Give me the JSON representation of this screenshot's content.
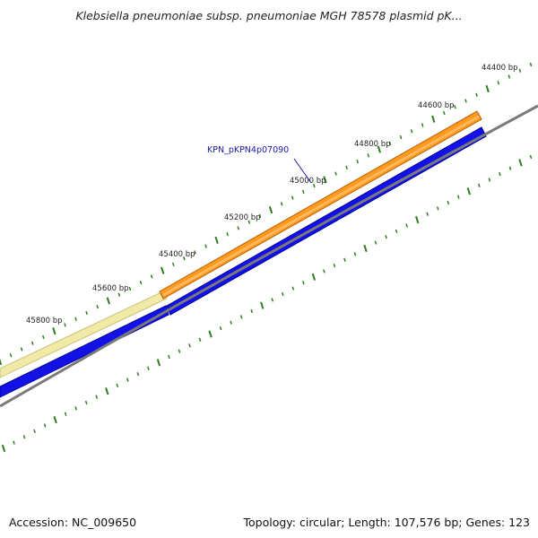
{
  "header": {
    "title": "Klebsiella pneumoniae subsp. pneumoniae MGH 78578 plasmid pK..."
  },
  "footer": {
    "accession": "Accession: NC_009650",
    "topology": "Topology: circular; Length: 107,576 bp; Genes: 123"
  },
  "map": {
    "ruler_labels": [
      "44400 bp",
      "44600 bp",
      "44800 bp",
      "45000 bp",
      "45200 bp",
      "45400 bp",
      "45600 bp",
      "45800 bp"
    ],
    "gene_label": "KPN_pKPN4p07090",
    "colors": {
      "tick": "#2e7d1e",
      "backbone": "#7a7a7a",
      "selected_gene": "#ff9a1f",
      "other_gene": "#f0eaa6",
      "reverse_strand": "#1212e6",
      "label_link": "#1a1aa6"
    }
  }
}
